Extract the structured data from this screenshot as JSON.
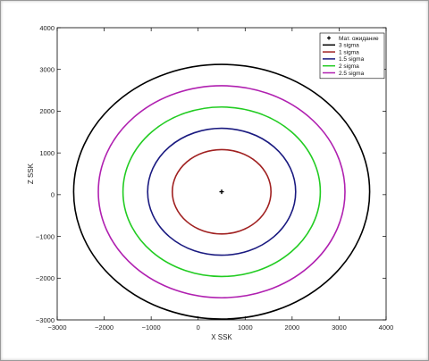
{
  "chart_data": {
    "type": "line",
    "title": "",
    "xlabel": "X SSK",
    "ylabel": "Z SSK",
    "xlim": [
      -3000,
      4000
    ],
    "ylim": [
      -3000,
      4000
    ],
    "xticks": [
      -3000,
      -2000,
      -1000,
      0,
      1000,
      2000,
      3000,
      4000
    ],
    "yticks": [
      -3000,
      -2000,
      -1000,
      0,
      1000,
      2000,
      3000,
      4000
    ],
    "grid": false,
    "legend_position": "top-right",
    "mean_point": {
      "name": "Мат. ожидание",
      "x": 500,
      "y": 70,
      "marker": "+",
      "color": "#000000"
    },
    "series": [
      {
        "name": "3 sigma",
        "shape": "ellipse",
        "center": [
          500,
          70
        ],
        "semi_axis_x": 3150,
        "semi_axis_z": 3050,
        "color": "#000000"
      },
      {
        "name": "1 sigma",
        "shape": "ellipse",
        "center": [
          500,
          70
        ],
        "semi_axis_x": 1050,
        "semi_axis_z": 1010,
        "color": "#a02020"
      },
      {
        "name": "1.5 sigma",
        "shape": "ellipse",
        "center": [
          500,
          70
        ],
        "semi_axis_x": 1575,
        "semi_axis_z": 1520,
        "color": "#1a1a80"
      },
      {
        "name": "2 sigma",
        "shape": "ellipse",
        "center": [
          500,
          70
        ],
        "semi_axis_x": 2100,
        "semi_axis_z": 2030,
        "color": "#22cc22"
      },
      {
        "name": "2.5 sigma",
        "shape": "ellipse",
        "center": [
          500,
          70
        ],
        "semi_axis_x": 2625,
        "semi_axis_z": 2540,
        "color": "#b020b0"
      }
    ]
  }
}
